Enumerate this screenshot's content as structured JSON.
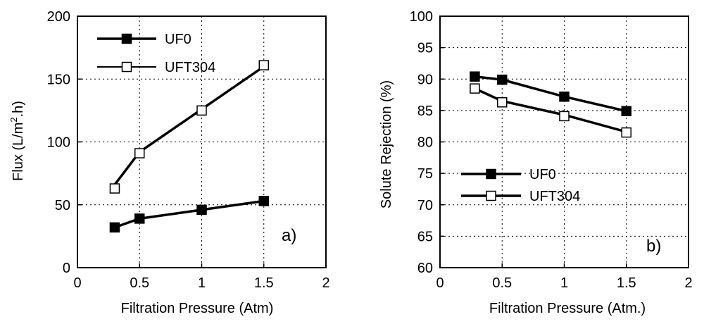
{
  "chart_data": [
    {
      "type": "line",
      "xlabel": "Filtration Pressure (Atm)",
      "ylabel_parts": [
        "Flux (L/m",
        "2",
        ".h)"
      ],
      "xlim": [
        0,
        2
      ],
      "ylim": [
        0,
        200
      ],
      "xticks": [
        0,
        0.5,
        1,
        1.5,
        2
      ],
      "xtick_labels": [
        "0",
        "0.5",
        "1",
        "1.5",
        "2"
      ],
      "yticks": [
        0,
        50,
        100,
        150,
        200
      ],
      "ytick_labels": [
        "0",
        "50",
        "100",
        "150",
        "200"
      ],
      "grid": true,
      "legend_position": "top-left",
      "panel_label": "a)",
      "series": [
        {
          "name": "UF0",
          "marker": "filled-square",
          "x": [
            0.3,
            0.5,
            1.0,
            1.5
          ],
          "y": [
            32,
            39,
            46,
            53
          ],
          "line_y": [
            32,
            39,
            46,
            53
          ]
        },
        {
          "name": "UFT304",
          "marker": "open-square",
          "x": [
            0.3,
            0.5,
            1.0,
            1.5
          ],
          "y": [
            63,
            91,
            125,
            161
          ],
          "line_y": [
            66,
            92,
            126,
            160
          ]
        }
      ]
    },
    {
      "type": "line",
      "xlabel": "Filtration Pressure (Atm.)",
      "ylabel": "Solute Rejection (%)",
      "xlim": [
        0,
        2
      ],
      "ylim": [
        60,
        100
      ],
      "xticks": [
        0,
        0.5,
        1,
        1.5,
        2
      ],
      "xtick_labels": [
        "0",
        "0.5",
        "1",
        "1.5",
        "2"
      ],
      "yticks": [
        60,
        65,
        70,
        75,
        80,
        85,
        90,
        95,
        100
      ],
      "ytick_labels": [
        "60",
        "65",
        "70",
        "75",
        "80",
        "85",
        "90",
        "95",
        "100"
      ],
      "grid": true,
      "legend_position": "bottom-left",
      "panel_label": "b)",
      "series": [
        {
          "name": "UF0",
          "marker": "filled-square",
          "x": [
            0.28,
            0.5,
            1.0,
            1.5
          ],
          "y": [
            90.4,
            89.9,
            87.2,
            84.9
          ],
          "line_y": [
            90.4,
            89.9,
            87.2,
            84.9
          ]
        },
        {
          "name": "UFT304",
          "marker": "open-square",
          "x": [
            0.28,
            0.5,
            1.0,
            1.5
          ],
          "y": [
            88.5,
            86.3,
            84.1,
            81.5
          ],
          "line_y": [
            88.5,
            86.5,
            84.3,
            81.6
          ]
        }
      ]
    }
  ]
}
